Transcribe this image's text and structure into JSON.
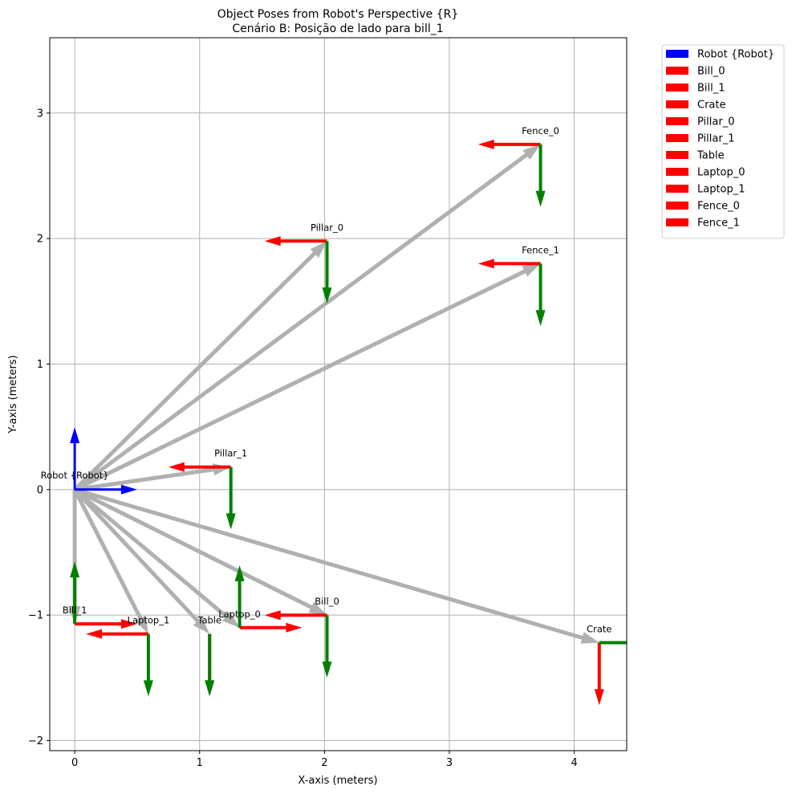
{
  "chart_data": {
    "type": "scatter",
    "title_lines": [
      "Object Poses from Robot's Perspective {R}",
      "Cenário B: Posição de lado para bill_1"
    ],
    "xlabel": "X-axis (meters)",
    "ylabel": "Y-axis (meters)",
    "xlim": [
      -0.2,
      4.42
    ],
    "ylim": [
      -2.08,
      3.6
    ],
    "xticks": [
      0,
      1,
      2,
      3,
      4
    ],
    "yticks": [
      -2,
      -1,
      0,
      1,
      2,
      3
    ],
    "grid": true,
    "legend_position": "outside-top-right",
    "colors": {
      "robot": "#0000ff",
      "x_axis": "#ff0000",
      "y_axis": "#008000",
      "ray": "#b0b0b0",
      "grid": "#b0b0b0"
    },
    "robot": {
      "label": "Robot {Robot}",
      "x": 0,
      "y": 0
    },
    "objects": [
      {
        "label": "Bill_0",
        "x": 2.02,
        "y": -1.0,
        "xdir": [
          -1,
          0
        ],
        "ydir": [
          0,
          -1
        ]
      },
      {
        "label": "Bill_1",
        "x": 0.0,
        "y": -1.07,
        "xdir": [
          1,
          0
        ],
        "ydir": [
          0,
          1
        ]
      },
      {
        "label": "Crate",
        "x": 4.2,
        "y": -1.22,
        "xdir": [
          0,
          -1
        ],
        "ydir": [
          1,
          0
        ]
      },
      {
        "label": "Pillar_0",
        "x": 2.02,
        "y": 1.98,
        "xdir": [
          -1,
          0
        ],
        "ydir": [
          0,
          -1
        ]
      },
      {
        "label": "Pillar_1",
        "x": 1.25,
        "y": 0.18,
        "xdir": [
          -1,
          0
        ],
        "ydir": [
          0,
          -1
        ]
      },
      {
        "label": "Table",
        "x": 1.08,
        "y": -1.15,
        "xdir": [
          0,
          -1
        ],
        "ydir": [
          0,
          -1
        ]
      },
      {
        "label": "Laptop_0",
        "x": 1.32,
        "y": -1.1,
        "xdir": [
          1,
          0
        ],
        "ydir": [
          0,
          1
        ]
      },
      {
        "label": "Laptop_1",
        "x": 0.59,
        "y": -1.15,
        "xdir": [
          -1,
          0
        ],
        "ydir": [
          0,
          -1
        ]
      },
      {
        "label": "Fence_0",
        "x": 3.73,
        "y": 2.75,
        "xdir": [
          -1,
          0
        ],
        "ydir": [
          0,
          -1
        ]
      },
      {
        "label": "Fence_1",
        "x": 3.73,
        "y": 1.8,
        "xdir": [
          -1,
          0
        ],
        "ydir": [
          0,
          -1
        ]
      }
    ],
    "legend": [
      "Robot {Robot}",
      "Bill_0",
      "Bill_1",
      "Crate",
      "Pillar_0",
      "Pillar_1",
      "Table",
      "Laptop_0",
      "Laptop_1",
      "Fence_0",
      "Fence_1"
    ]
  }
}
